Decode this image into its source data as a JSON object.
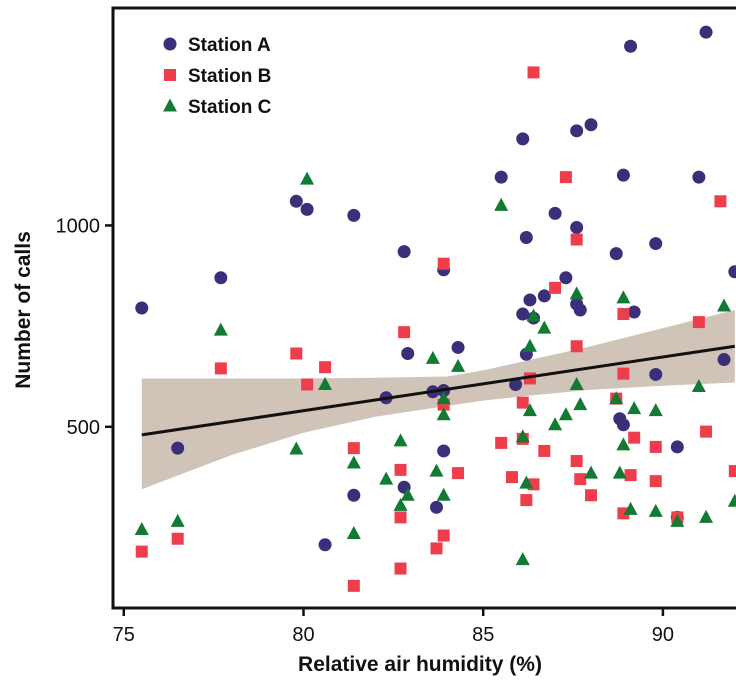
{
  "chart_data": {
    "type": "scatter",
    "xlabel": "Relative air humidity (%)",
    "ylabel": "Number of calls",
    "xlim": [
      74.7,
      92.2
    ],
    "ylim": [
      50,
      1540
    ],
    "xticks": [
      75,
      80,
      85,
      90
    ],
    "yticks": [
      500,
      1000
    ],
    "legend_position": "top-left",
    "grid": false,
    "series": [
      {
        "name": "Station A",
        "marker": "circle",
        "color": "#3b2f7a",
        "points": [
          [
            75.5,
            795
          ],
          [
            76.5,
            447
          ],
          [
            77.7,
            870
          ],
          [
            79.8,
            1060
          ],
          [
            80.1,
            1040
          ],
          [
            80.6,
            207
          ],
          [
            81.4,
            1025
          ],
          [
            81.4,
            330
          ],
          [
            82.3,
            572
          ],
          [
            82.8,
            935
          ],
          [
            82.9,
            682
          ],
          [
            82.8,
            350
          ],
          [
            83.6,
            587
          ],
          [
            83.7,
            300
          ],
          [
            83.9,
            590
          ],
          [
            83.9,
            440
          ],
          [
            83.9,
            890
          ],
          [
            84.3,
            697
          ],
          [
            85.5,
            1120
          ],
          [
            85.9,
            605
          ],
          [
            86.1,
            1215
          ],
          [
            86.2,
            680
          ],
          [
            86.1,
            780
          ],
          [
            86.2,
            970
          ],
          [
            86.3,
            815
          ],
          [
            86.4,
            770
          ],
          [
            86.7,
            825
          ],
          [
            87.0,
            1030
          ],
          [
            87.3,
            870
          ],
          [
            87.6,
            1235
          ],
          [
            87.6,
            995
          ],
          [
            87.6,
            805
          ],
          [
            87.7,
            790
          ],
          [
            88.0,
            1250
          ],
          [
            88.7,
            930
          ],
          [
            88.8,
            520
          ],
          [
            88.9,
            505
          ],
          [
            88.9,
            1125
          ],
          [
            89.1,
            1445
          ],
          [
            89.2,
            785
          ],
          [
            89.8,
            955
          ],
          [
            89.8,
            630
          ],
          [
            90.4,
            450
          ],
          [
            90.4,
            275
          ],
          [
            91.0,
            1120
          ],
          [
            91.2,
            1480
          ],
          [
            91.7,
            667
          ],
          [
            92.0,
            885
          ]
        ]
      },
      {
        "name": "Station B",
        "marker": "square",
        "color": "#ee3e4c",
        "points": [
          [
            75.5,
            190
          ],
          [
            76.5,
            222
          ],
          [
            77.7,
            645
          ],
          [
            79.8,
            682
          ],
          [
            80.1,
            605
          ],
          [
            80.6,
            648
          ],
          [
            81.4,
            447
          ],
          [
            81.4,
            105
          ],
          [
            82.8,
            735
          ],
          [
            82.7,
            275
          ],
          [
            82.7,
            148
          ],
          [
            82.7,
            393
          ],
          [
            83.7,
            198
          ],
          [
            83.9,
            905
          ],
          [
            83.9,
            230
          ],
          [
            83.9,
            555
          ],
          [
            84.3,
            385
          ],
          [
            85.5,
            460
          ],
          [
            85.8,
            375
          ],
          [
            86.1,
            560
          ],
          [
            86.1,
            470
          ],
          [
            86.2,
            318
          ],
          [
            86.3,
            620
          ],
          [
            86.4,
            1380
          ],
          [
            86.4,
            357
          ],
          [
            86.7,
            440
          ],
          [
            87.0,
            845
          ],
          [
            87.3,
            1120
          ],
          [
            87.6,
            965
          ],
          [
            87.6,
            700
          ],
          [
            87.6,
            415
          ],
          [
            87.7,
            370
          ],
          [
            88.0,
            330
          ],
          [
            88.7,
            570
          ],
          [
            88.9,
            285
          ],
          [
            88.9,
            632
          ],
          [
            88.9,
            780
          ],
          [
            89.1,
            380
          ],
          [
            89.2,
            473
          ],
          [
            89.8,
            450
          ],
          [
            89.8,
            365
          ],
          [
            90.4,
            275
          ],
          [
            91.0,
            760
          ],
          [
            91.2,
            488
          ],
          [
            91.6,
            1060
          ],
          [
            92.0,
            390
          ]
        ]
      },
      {
        "name": "Station C",
        "marker": "triangle",
        "color": "#137a34",
        "points": [
          [
            75.5,
            245
          ],
          [
            76.5,
            265
          ],
          [
            77.7,
            740
          ],
          [
            79.8,
            445
          ],
          [
            80.1,
            1115
          ],
          [
            80.6,
            605
          ],
          [
            81.4,
            235
          ],
          [
            81.4,
            410
          ],
          [
            82.3,
            370
          ],
          [
            82.7,
            465
          ],
          [
            82.7,
            305
          ],
          [
            82.9,
            330
          ],
          [
            83.6,
            670
          ],
          [
            83.7,
            390
          ],
          [
            83.9,
            530
          ],
          [
            83.9,
            330
          ],
          [
            83.9,
            570
          ],
          [
            84.3,
            650
          ],
          [
            85.5,
            1050
          ],
          [
            86.1,
            170
          ],
          [
            86.1,
            475
          ],
          [
            86.2,
            360
          ],
          [
            86.3,
            540
          ],
          [
            86.3,
            700
          ],
          [
            86.4,
            775
          ],
          [
            86.7,
            745
          ],
          [
            87.0,
            505
          ],
          [
            87.3,
            530
          ],
          [
            87.6,
            830
          ],
          [
            87.6,
            605
          ],
          [
            87.7,
            555
          ],
          [
            88.0,
            385
          ],
          [
            88.7,
            570
          ],
          [
            88.8,
            385
          ],
          [
            88.9,
            455
          ],
          [
            88.9,
            820
          ],
          [
            89.1,
            295
          ],
          [
            89.2,
            545
          ],
          [
            89.8,
            540
          ],
          [
            89.8,
            290
          ],
          [
            90.4,
            265
          ],
          [
            91.0,
            600
          ],
          [
            91.2,
            275
          ],
          [
            91.7,
            800
          ],
          [
            92.0,
            315
          ]
        ]
      }
    ],
    "trendline": {
      "type": "linear",
      "color": "#111111",
      "x": [
        75.5,
        92.0
      ],
      "y": [
        480,
        700
      ]
    },
    "confidence_band": {
      "color": "#c8b8ab",
      "x": [
        75.5,
        78,
        80,
        82,
        84,
        85,
        86,
        88,
        90,
        92
      ],
      "lower": [
        345,
        430,
        485,
        525,
        552,
        565,
        575,
        592,
        602,
        610
      ],
      "upper": [
        620,
        620,
        620,
        622,
        625,
        640,
        660,
        700,
        745,
        790
      ]
    }
  }
}
